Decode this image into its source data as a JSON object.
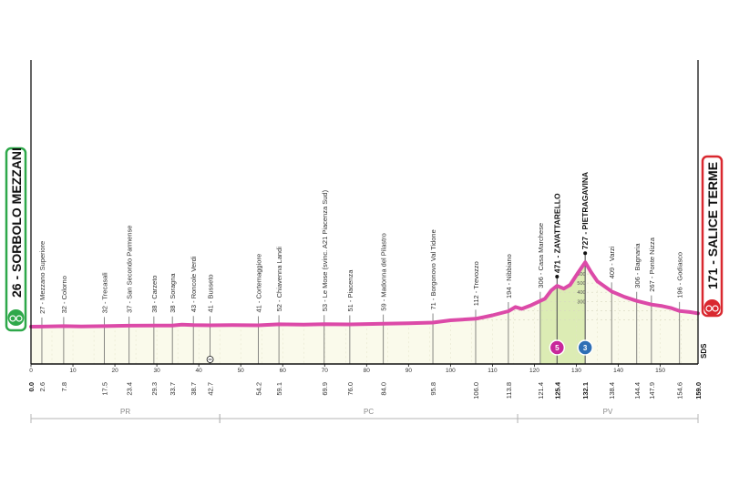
{
  "chart_data": {
    "type": "area",
    "title": "",
    "xlabel": "",
    "ylabel": "",
    "xlim": [
      0,
      159
    ],
    "ylim": [
      0,
      800
    ],
    "x_ticks": [
      0,
      10,
      20,
      30,
      40,
      50,
      60,
      70,
      80,
      90,
      100,
      110,
      120,
      130,
      140,
      150
    ],
    "altitude_ticks": [
      100,
      200,
      300,
      400,
      500,
      600
    ],
    "start": {
      "label": "26 - SORBOLO MEZZANI",
      "km": "0.0",
      "altitude": 26
    },
    "finish": {
      "label": "171 - SALICE TERME",
      "km": "159.0",
      "altitude": 171
    },
    "profile": [
      {
        "km": 0,
        "alt": 26
      },
      {
        "km": 2.6,
        "alt": 27
      },
      {
        "km": 7.8,
        "alt": 32
      },
      {
        "km": 12,
        "alt": 29
      },
      {
        "km": 17.5,
        "alt": 32
      },
      {
        "km": 23.4,
        "alt": 37
      },
      {
        "km": 29.3,
        "alt": 38
      },
      {
        "km": 33.7,
        "alt": 38
      },
      {
        "km": 36,
        "alt": 48
      },
      {
        "km": 38.7,
        "alt": 43
      },
      {
        "km": 42.7,
        "alt": 41
      },
      {
        "km": 48,
        "alt": 44
      },
      {
        "km": 54.2,
        "alt": 41
      },
      {
        "km": 59.1,
        "alt": 52
      },
      {
        "km": 65,
        "alt": 48
      },
      {
        "km": 69.9,
        "alt": 53
      },
      {
        "km": 76.0,
        "alt": 51
      },
      {
        "km": 84.0,
        "alt": 59
      },
      {
        "km": 90,
        "alt": 64
      },
      {
        "km": 95.8,
        "alt": 71
      },
      {
        "km": 100,
        "alt": 95
      },
      {
        "km": 106.0,
        "alt": 112
      },
      {
        "km": 108,
        "alt": 130
      },
      {
        "km": 110,
        "alt": 150
      },
      {
        "km": 113.8,
        "alt": 194
      },
      {
        "km": 115.5,
        "alt": 240
      },
      {
        "km": 117,
        "alt": 220
      },
      {
        "km": 119,
        "alt": 255
      },
      {
        "km": 121.4,
        "alt": 306
      },
      {
        "km": 122.5,
        "alt": 330
      },
      {
        "km": 124,
        "alt": 420
      },
      {
        "km": 125.4,
        "alt": 471
      },
      {
        "km": 127,
        "alt": 440
      },
      {
        "km": 128.5,
        "alt": 480
      },
      {
        "km": 130.5,
        "alt": 620
      },
      {
        "km": 132.1,
        "alt": 727
      },
      {
        "km": 133.5,
        "alt": 620
      },
      {
        "km": 135,
        "alt": 520
      },
      {
        "km": 138.4,
        "alt": 409
      },
      {
        "km": 141.5,
        "alt": 350
      },
      {
        "km": 144.4,
        "alt": 306
      },
      {
        "km": 147.9,
        "alt": 267
      },
      {
        "km": 150.5,
        "alt": 250
      },
      {
        "km": 152.5,
        "alt": 230
      },
      {
        "km": 154.6,
        "alt": 196
      },
      {
        "km": 157,
        "alt": 185
      },
      {
        "km": 159,
        "alt": 171
      }
    ],
    "waypoints": [
      {
        "km": 2.6,
        "km_label": "2.6",
        "name": "27 - Mezzano Superiore",
        "alt": 27
      },
      {
        "km": 7.8,
        "km_label": "7.8",
        "name": "32 - Colorno",
        "alt": 32
      },
      {
        "km": 17.5,
        "km_label": "17.5",
        "name": "32 - Trecasali",
        "alt": 32
      },
      {
        "km": 23.4,
        "km_label": "23.4",
        "name": "37 - San Secondo Parmense",
        "alt": 37
      },
      {
        "km": 29.3,
        "km_label": "29.3",
        "name": "38 - Carzeto",
        "alt": 38
      },
      {
        "km": 33.7,
        "km_label": "33.7",
        "name": "38 - Soragna",
        "alt": 38
      },
      {
        "km": 38.7,
        "km_label": "38.7",
        "name": "43 - Roncole Verdi",
        "alt": 43
      },
      {
        "km": 42.7,
        "km_label": "42.7",
        "name": "41 - Busseto",
        "alt": 41
      },
      {
        "km": 54.2,
        "km_label": "54.2",
        "name": "41 - Cortemaggiore",
        "alt": 41
      },
      {
        "km": 59.1,
        "km_label": "59.1",
        "name": "52 - Chiavenna Landi",
        "alt": 52
      },
      {
        "km": 69.9,
        "km_label": "69.9",
        "name": "53 - Le Mose (svinc. A21 Piacenza Sud)",
        "alt": 53
      },
      {
        "km": 76.0,
        "km_label": "76.0",
        "name": "51 - Piacenza",
        "alt": 51
      },
      {
        "km": 84.0,
        "km_label": "84.0",
        "name": "59 - Madonna del Pilastro",
        "alt": 59
      },
      {
        "km": 95.8,
        "km_label": "95.8",
        "name": "71 - Borgonovo Val Tidone",
        "alt": 71
      },
      {
        "km": 106.0,
        "km_label": "106.0",
        "name": "112 - Trevozzo",
        "alt": 112
      },
      {
        "km": 113.8,
        "km_label": "113.8",
        "name": "194 - Nibbiano",
        "alt": 194
      },
      {
        "km": 121.4,
        "km_label": "121.4",
        "name": "306 - Casa Marchese",
        "alt": 306
      },
      {
        "km": 125.4,
        "km_label": "125.4",
        "name": "471 - ZAVATTARELLO",
        "alt": 471,
        "major": true
      },
      {
        "km": 132.1,
        "km_label": "132.1",
        "name": "727 - PIETRAGAVINA",
        "alt": 727,
        "major": true
      },
      {
        "km": 138.4,
        "km_label": "138.4",
        "name": "409 - Varzi",
        "alt": 409
      },
      {
        "km": 144.4,
        "km_label": "144.4",
        "name": "306 - Bagnaria",
        "alt": 306
      },
      {
        "km": 147.9,
        "km_label": "147.9",
        "name": "267 - Ponte Nizza",
        "alt": 267
      },
      {
        "km": 154.6,
        "km_label": "154.6",
        "name": "196 - Godiasco",
        "alt": 196
      }
    ],
    "climb_section": {
      "from_km": 121.4,
      "to_km": 132.1
    },
    "kom_badges": [
      {
        "km": 125.4,
        "category": "5",
        "color": "#c8289b"
      },
      {
        "km": 132.1,
        "category": "3",
        "color": "#2e6fb5"
      }
    ],
    "provinces": [
      {
        "label": "PR",
        "from_km": 0,
        "to_km": 45
      },
      {
        "label": "PC",
        "from_km": 45,
        "to_km": 116
      },
      {
        "label": "PV",
        "from_km": 116,
        "to_km": 159
      }
    ],
    "sprint_marker_km": 42.7,
    "brand_text": "SDS"
  },
  "colors": {
    "profile_line": "#dc4aa8",
    "profile_fill": "#fafaeb",
    "climb_fill": "#dcecb4",
    "start_green": "#2ea84a",
    "finish_red": "#d9282f"
  }
}
